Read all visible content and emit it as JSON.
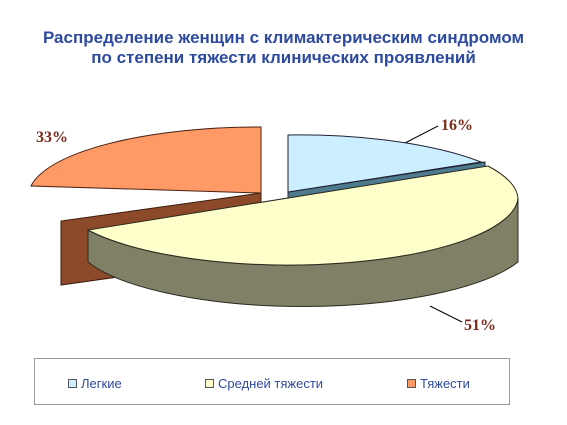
{
  "title_line1": "Распределение женщин с климактерическим синдромом",
  "title_line2": "по степени тяжести клинических проявлений",
  "chart_data": {
    "type": "pie",
    "title": "Распределение женщин с климактерическим синдромом по степени тяжести клинических проявлений",
    "style": "3d-exploded",
    "categories": [
      "Легкие",
      "Средней тяжести",
      "Тяжести"
    ],
    "values": [
      16,
      51,
      33
    ],
    "labels": [
      "16%",
      "51%",
      "33%"
    ],
    "colors": [
      "#ccefff",
      "#ffffcc",
      "#ff9966"
    ],
    "legend_position": "bottom"
  }
}
